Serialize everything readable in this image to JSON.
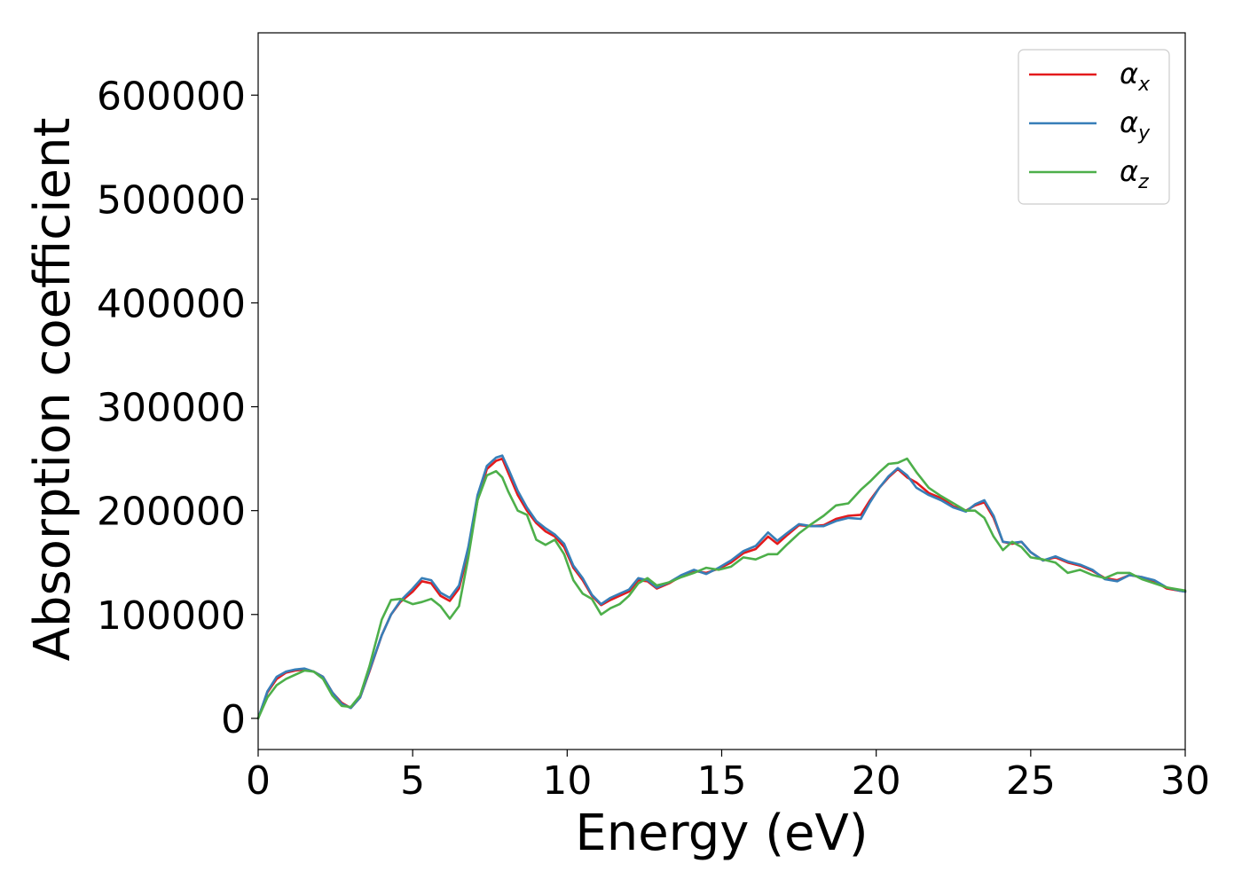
{
  "chart_data": {
    "type": "line",
    "title": "",
    "xlabel": "Energy (eV)",
    "ylabel": "Absorption coefficient",
    "xlim": [
      0,
      30
    ],
    "ylim": [
      -30000,
      660000
    ],
    "xticks": [
      0,
      5,
      10,
      15,
      20,
      25,
      30
    ],
    "yticks": [
      0,
      100000,
      200000,
      300000,
      400000,
      500000,
      600000
    ],
    "grid": false,
    "legend_position": "top-right",
    "series": [
      {
        "name": "αx",
        "name_base": "α",
        "name_sub": "x",
        "color": "#e41a1c",
        "x": [
          0,
          0.3,
          0.6,
          0.9,
          1.2,
          1.5,
          1.8,
          2.1,
          2.4,
          2.7,
          3.0,
          3.3,
          3.6,
          4.0,
          4.3,
          4.6,
          5.0,
          5.3,
          5.6,
          5.9,
          6.2,
          6.5,
          6.8,
          7.1,
          7.4,
          7.7,
          7.9,
          8.1,
          8.4,
          8.7,
          9.0,
          9.3,
          9.6,
          9.9,
          10.2,
          10.5,
          10.8,
          11.1,
          11.4,
          11.7,
          12.0,
          12.3,
          12.6,
          12.9,
          13.3,
          13.7,
          14.1,
          14.5,
          14.9,
          15.3,
          15.7,
          16.1,
          16.5,
          16.8,
          17.1,
          17.5,
          17.9,
          18.3,
          18.7,
          19.1,
          19.5,
          19.8,
          20.1,
          20.4,
          20.7,
          21.0,
          21.3,
          21.7,
          22.1,
          22.5,
          22.9,
          23.2,
          23.5,
          23.8,
          24.1,
          24.4,
          24.7,
          25.0,
          25.4,
          25.8,
          26.2,
          26.6,
          27.0,
          27.4,
          27.8,
          28.2,
          28.6,
          29.0,
          29.4,
          29.8,
          30.0
        ],
        "y": [
          0,
          25000,
          38000,
          44000,
          46000,
          47000,
          45000,
          40000,
          25000,
          15000,
          10000,
          20000,
          45000,
          80000,
          100000,
          112000,
          122000,
          132000,
          130000,
          118000,
          113000,
          125000,
          160000,
          210000,
          240000,
          248000,
          250000,
          236000,
          215000,
          200000,
          188000,
          180000,
          175000,
          165000,
          145000,
          133000,
          118000,
          109000,
          114000,
          118000,
          122000,
          133000,
          132000,
          125000,
          130000,
          137000,
          142000,
          140000,
          144000,
          150000,
          159000,
          163000,
          175000,
          168000,
          176000,
          186000,
          185000,
          186000,
          192000,
          195000,
          196000,
          210000,
          222000,
          232000,
          240000,
          232000,
          227000,
          217000,
          212000,
          204000,
          200000,
          205000,
          208000,
          193000,
          170000,
          168000,
          170000,
          160000,
          152000,
          155000,
          150000,
          147000,
          142000,
          135000,
          133000,
          138000,
          136000,
          132000,
          125000,
          123000,
          122000
        ]
      },
      {
        "name": "αy",
        "name_base": "α",
        "name_sub": "y",
        "color": "#377eb8",
        "x": [
          0,
          0.3,
          0.6,
          0.9,
          1.2,
          1.5,
          1.8,
          2.1,
          2.4,
          2.7,
          3.0,
          3.3,
          3.6,
          4.0,
          4.3,
          4.6,
          5.0,
          5.3,
          5.6,
          5.9,
          6.2,
          6.5,
          6.8,
          7.1,
          7.4,
          7.7,
          7.9,
          8.1,
          8.4,
          8.7,
          9.0,
          9.3,
          9.6,
          9.9,
          10.2,
          10.5,
          10.8,
          11.1,
          11.4,
          11.7,
          12.0,
          12.3,
          12.6,
          12.9,
          13.3,
          13.7,
          14.1,
          14.5,
          14.9,
          15.3,
          15.7,
          16.1,
          16.5,
          16.8,
          17.1,
          17.5,
          17.9,
          18.3,
          18.7,
          19.1,
          19.5,
          19.8,
          20.1,
          20.4,
          20.7,
          21.0,
          21.3,
          21.7,
          22.1,
          22.5,
          22.9,
          23.2,
          23.5,
          23.8,
          24.1,
          24.4,
          24.7,
          25.0,
          25.4,
          25.8,
          26.2,
          26.6,
          27.0,
          27.4,
          27.8,
          28.2,
          28.6,
          29.0,
          29.4,
          29.8,
          30.0
        ],
        "y": [
          0,
          26000,
          40000,
          45000,
          47000,
          48000,
          45000,
          40000,
          25000,
          14000,
          10000,
          20000,
          46000,
          80000,
          100000,
          113000,
          125000,
          135000,
          133000,
          121000,
          116000,
          128000,
          165000,
          215000,
          243000,
          251000,
          253000,
          240000,
          219000,
          203000,
          190000,
          183000,
          177000,
          168000,
          147000,
          135000,
          119000,
          110000,
          116000,
          120000,
          124000,
          135000,
          133000,
          126000,
          131000,
          138000,
          143000,
          139000,
          145000,
          152000,
          161000,
          166000,
          179000,
          171000,
          178000,
          187000,
          185000,
          185000,
          190000,
          193000,
          192000,
          208000,
          222000,
          233000,
          241000,
          234000,
          222000,
          215000,
          210000,
          203000,
          199000,
          206000,
          210000,
          195000,
          170000,
          169000,
          170000,
          160000,
          152000,
          156000,
          151000,
          148000,
          143000,
          134000,
          132000,
          138000,
          136000,
          133000,
          126000,
          123000,
          122000
        ]
      },
      {
        "name": "αz",
        "name_base": "α",
        "name_sub": "z",
        "color": "#4daf4a",
        "x": [
          0,
          0.3,
          0.6,
          0.9,
          1.2,
          1.5,
          1.8,
          2.1,
          2.4,
          2.7,
          3.0,
          3.3,
          3.6,
          4.0,
          4.3,
          4.6,
          5.0,
          5.3,
          5.6,
          5.9,
          6.2,
          6.5,
          6.8,
          7.1,
          7.4,
          7.7,
          7.9,
          8.1,
          8.4,
          8.7,
          9.0,
          9.3,
          9.6,
          9.9,
          10.2,
          10.5,
          10.8,
          11.1,
          11.4,
          11.7,
          12.0,
          12.3,
          12.6,
          12.9,
          13.3,
          13.7,
          14.1,
          14.5,
          14.9,
          15.3,
          15.7,
          16.1,
          16.5,
          16.8,
          17.1,
          17.5,
          17.9,
          18.3,
          18.7,
          19.1,
          19.5,
          19.8,
          20.1,
          20.4,
          20.7,
          21.0,
          21.3,
          21.7,
          22.1,
          22.5,
          22.9,
          23.2,
          23.5,
          23.8,
          24.1,
          24.4,
          24.7,
          25.0,
          25.4,
          25.8,
          26.2,
          26.6,
          27.0,
          27.4,
          27.8,
          28.2,
          28.6,
          29.0,
          29.4,
          29.8,
          30.0
        ],
        "y": [
          0,
          20000,
          32000,
          38000,
          42000,
          46000,
          45000,
          38000,
          22000,
          12000,
          11000,
          22000,
          50000,
          95000,
          114000,
          115000,
          110000,
          112000,
          115000,
          108000,
          96000,
          108000,
          155000,
          210000,
          234000,
          238000,
          232000,
          218000,
          200000,
          196000,
          172000,
          167000,
          172000,
          158000,
          133000,
          120000,
          115000,
          100000,
          106000,
          110000,
          118000,
          130000,
          135000,
          128000,
          131000,
          136000,
          140000,
          145000,
          143000,
          146000,
          155000,
          153000,
          158000,
          158000,
          167000,
          178000,
          187000,
          195000,
          205000,
          207000,
          220000,
          228000,
          237000,
          245000,
          246000,
          250000,
          237000,
          222000,
          214000,
          207000,
          200000,
          200000,
          193000,
          175000,
          162000,
          170000,
          165000,
          155000,
          153000,
          150000,
          140000,
          143000,
          138000,
          135000,
          140000,
          140000,
          134000,
          130000,
          126000,
          124000,
          123000
        ]
      }
    ]
  }
}
